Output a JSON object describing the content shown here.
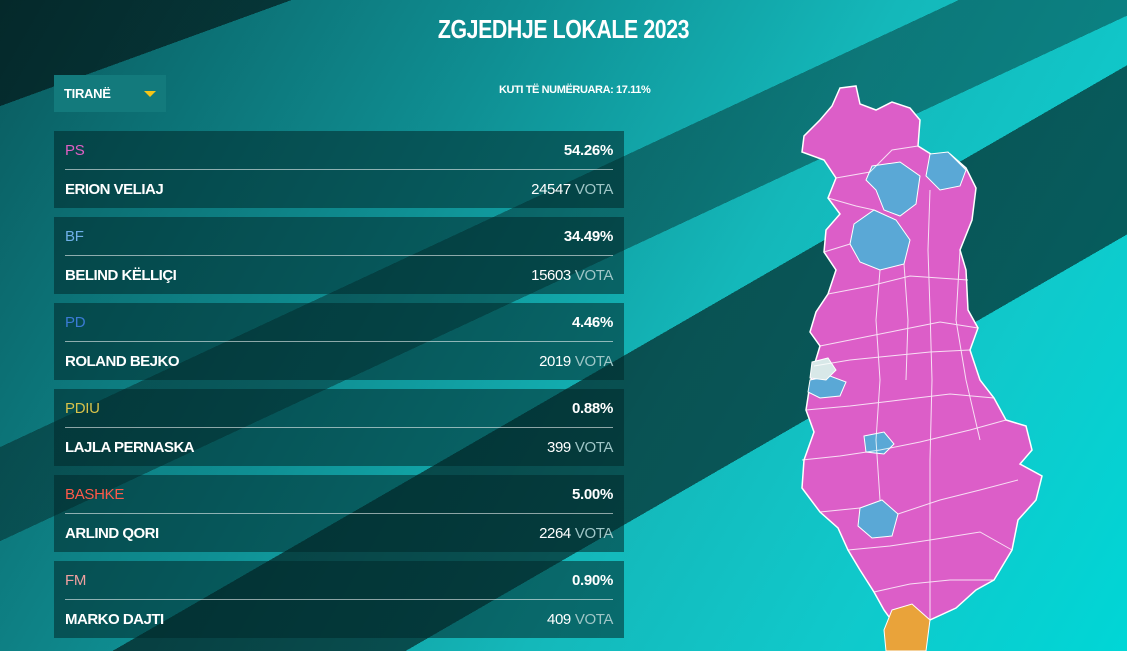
{
  "header": {
    "title": "ZGJEDHJE LOKALE 2023"
  },
  "municipality_select": {
    "selected": "TIRANË"
  },
  "counted_text": "KUTI TË NUMËRUARA: 17.11%",
  "votes_unit": "VOTA",
  "results": [
    {
      "party": "PS",
      "color": "#e05fc3",
      "percent": "54.26%",
      "candidate": "ERION VELIAJ",
      "votes": "24547"
    },
    {
      "party": "BF",
      "color": "#6fb0e8",
      "percent": "34.49%",
      "candidate": "BELIND KËLLIÇI",
      "votes": "15603"
    },
    {
      "party": "PD",
      "color": "#3a7bd5",
      "percent": "4.46%",
      "candidate": "ROLAND BEJKO",
      "votes": "2019"
    },
    {
      "party": "PDIU",
      "color": "#d6c24a",
      "percent": "0.88%",
      "candidate": "LAJLA PERNASKA",
      "votes": "399"
    },
    {
      "party": "BASHKE",
      "color": "#ff5a4a",
      "percent": "5.00%",
      "candidate": "ARLIND QORI",
      "votes": "2264"
    },
    {
      "party": "FM",
      "color": "#f0a0a0",
      "percent": "0.90%",
      "candidate": "MARKO DAJTI",
      "votes": "409"
    }
  ],
  "map_colors": {
    "ps": "#dc5ec8",
    "bf": "#5aa8d6",
    "other": "#e9a33a",
    "undecided": "#d8e8e8"
  }
}
